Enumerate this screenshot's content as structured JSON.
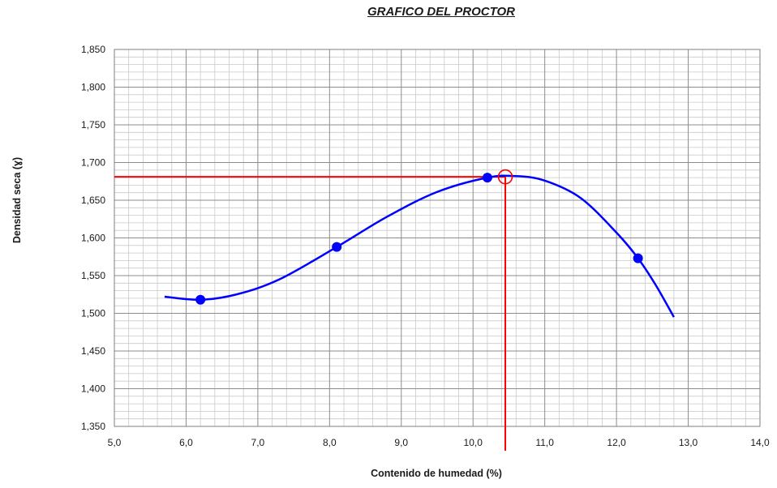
{
  "chart_data": {
    "type": "scatter",
    "title": "GRAFICO DEL PROCTOR",
    "xlabel": "Contenido de humedad (%)",
    "ylabel": "Densidad seca (ɣ)",
    "xlim": [
      5.0,
      14.0
    ],
    "ylim": [
      1.35,
      1.85
    ],
    "x_ticks": [
      "5,0",
      "6,0",
      "7,0",
      "8,0",
      "9,0",
      "10,0",
      "11,0",
      "12,0",
      "13,0",
      "14,0"
    ],
    "y_ticks": [
      "1,350",
      "1,400",
      "1,450",
      "1,500",
      "1,550",
      "1,600",
      "1,650",
      "1,700",
      "1,750",
      "1,800",
      "1,850"
    ],
    "grid": true,
    "series": [
      {
        "values": [
          {
            "x": 6.2,
            "y": 1.518
          },
          {
            "x": 8.1,
            "y": 1.588
          },
          {
            "x": 10.2,
            "y": 1.68
          },
          {
            "x": 12.3,
            "y": 1.573
          }
        ],
        "curve": [
          {
            "x": 5.7,
            "y": 1.522
          },
          {
            "x": 6.2,
            "y": 1.518
          },
          {
            "x": 6.7,
            "y": 1.525
          },
          {
            "x": 7.3,
            "y": 1.545
          },
          {
            "x": 8.1,
            "y": 1.588
          },
          {
            "x": 8.8,
            "y": 1.628
          },
          {
            "x": 9.5,
            "y": 1.661
          },
          {
            "x": 10.2,
            "y": 1.68
          },
          {
            "x": 10.6,
            "y": 1.682
          },
          {
            "x": 11.0,
            "y": 1.676
          },
          {
            "x": 11.5,
            "y": 1.653
          },
          {
            "x": 12.0,
            "y": 1.607
          },
          {
            "x": 12.3,
            "y": 1.573
          },
          {
            "x": 12.55,
            "y": 1.537
          },
          {
            "x": 12.8,
            "y": 1.495
          }
        ],
        "color": "#0000ff"
      }
    ],
    "optimum": {
      "x": 10.45,
      "y": 1.681,
      "color": "#ff0000"
    }
  }
}
